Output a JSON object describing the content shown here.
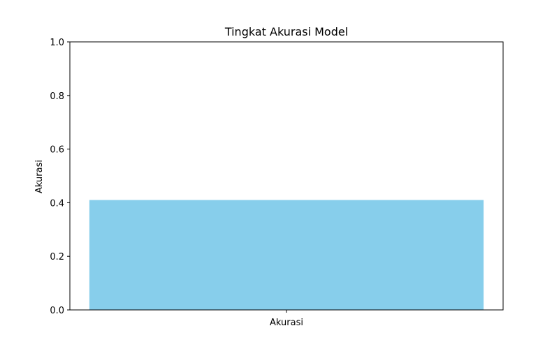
{
  "chart_data": {
    "type": "bar",
    "title": "Tingkat Akurasi Model",
    "xlabel": "",
    "ylabel": "Akurasi",
    "categories": [
      "Akurasi"
    ],
    "values": [
      0.41
    ],
    "ylim": [
      0.0,
      1.0
    ],
    "yticks": [
      "0.0",
      "0.2",
      "0.4",
      "0.6",
      "0.8",
      "1.0"
    ],
    "ytick_values": [
      0.0,
      0.2,
      0.4,
      0.6,
      0.8,
      1.0
    ],
    "grid": false,
    "bar_color": "#87ceeb"
  }
}
